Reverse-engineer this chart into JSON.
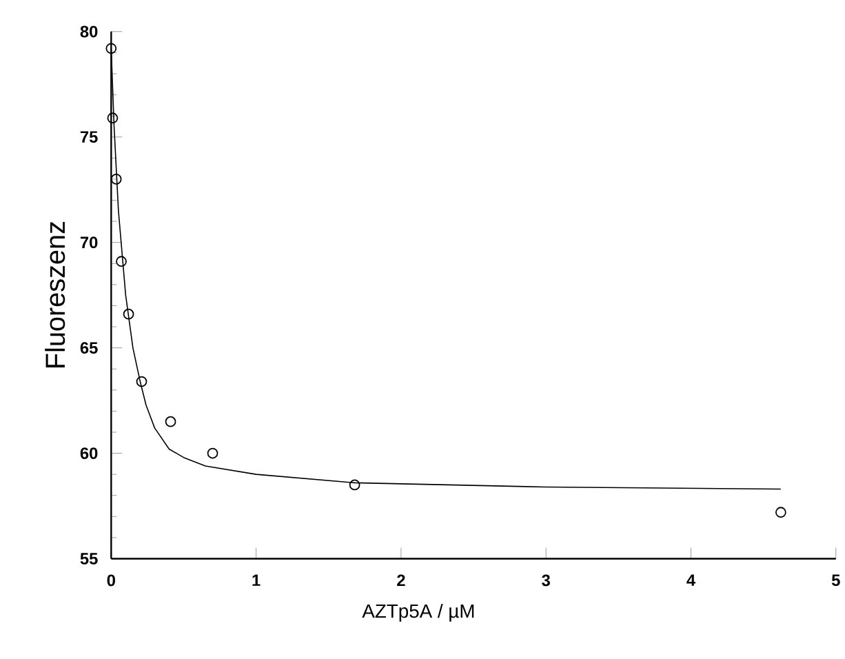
{
  "chart_data": {
    "type": "scatter",
    "xlabel": "AZTp5A / µM",
    "ylabel": "Fluoreszenz",
    "xlim": [
      0,
      5
    ],
    "ylim": [
      55,
      80
    ],
    "xticks": [
      0,
      1,
      2,
      3,
      4,
      5
    ],
    "yticks": [
      55,
      60,
      65,
      70,
      75,
      80
    ],
    "grid": false,
    "series": [
      {
        "color": "#000000",
        "marker": "circle",
        "x": [
          0,
          0.01,
          0.035,
          0.07,
          0.12,
          0.21,
          0.41,
          0.7,
          1.68,
          4.62
        ],
        "values": [
          79.2,
          75.9,
          73.0,
          69.1,
          66.6,
          63.4,
          61.5,
          60.0,
          58.5,
          57.2
        ]
      },
      {
        "type": "line",
        "color": "#000000",
        "marker": "none",
        "line_style": "solid",
        "x": [
          0,
          0.02,
          0.05,
          0.1,
          0.15,
          0.2,
          0.24,
          0.3,
          0.4,
          0.5,
          0.65,
          1.0,
          1.68,
          3.0,
          4.62
        ],
        "values": [
          79.2,
          75.5,
          71.5,
          67.5,
          65.0,
          63.4,
          62.3,
          61.2,
          60.2,
          59.8,
          59.4,
          59.0,
          58.6,
          58.4,
          58.3
        ]
      }
    ]
  }
}
